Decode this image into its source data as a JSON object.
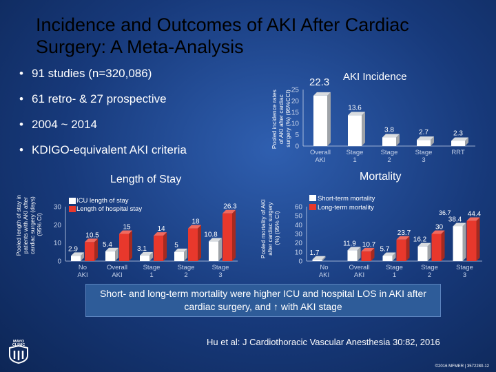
{
  "slide": {
    "title": "Incidence and Outcomes of AKI After Cardiac Surgery: A Meta-Analysis",
    "bullets": [
      "91 studies (n=320,086)",
      "61 retro- & 27 prospective",
      "2004 ~ 2014",
      "KDIGO-equivalent AKI criteria"
    ],
    "callout": "Short- and long-term mortality were higher ICU and hospital LOS in AKI after cardiac surgery, and ↑ with AKI stage",
    "citation": "Hu et al: J Cardiothoracic Vascular Anesthesia 30:82, 2016",
    "copyright": "©2016 MFMER | 3572280-12",
    "logo_text": "MAYO CLINIC",
    "colors": {
      "bar_front": "#ffffff",
      "bar_side": "#9fa3a8",
      "bar_top": "#d9dcdf",
      "series_red": "#e8382c",
      "axis_text": "#c7d3ea"
    }
  },
  "chart_data": [
    {
      "type": "bar",
      "title": "AKI Incidence",
      "highlight_value": "22.3",
      "ylabel": "Pooled incidence rates of AKI after cardiac surgery (%) (95%CCI)",
      "ylim": [
        0,
        25
      ],
      "yticks": [
        0,
        5,
        10,
        15,
        20,
        25
      ],
      "categories": [
        "Overall AKI",
        "Stage 1",
        "Stage 2",
        "Stage 3",
        "RRT"
      ],
      "values": [
        22.3,
        13.6,
        3.8,
        2.7,
        2.3
      ],
      "data_labels": [
        "",
        "13.6",
        "3.8",
        "2.7",
        "2.3"
      ]
    },
    {
      "type": "bar",
      "title": "Length of Stay",
      "ylabel": "Pooled length of stay in patients with AKI after cardiac surgery (days) (95% CI)",
      "ylim": [
        0,
        30
      ],
      "yticks": [
        0,
        10,
        20,
        30
      ],
      "categories": [
        "No AKI",
        "Overall AKI",
        "Stage 1",
        "Stage 2",
        "Stage 3"
      ],
      "series": [
        {
          "name": "ICU length of stay",
          "values": [
            2.9,
            5.4,
            3.1,
            5,
            10.8
          ]
        },
        {
          "name": "Length of hospital stay",
          "values": [
            10.5,
            15,
            14,
            18,
            26.3
          ]
        }
      ],
      "data_labels": [
        [
          "2.9",
          "5.4",
          "3.1",
          "5",
          "10.8"
        ],
        [
          "10.5",
          "15",
          "14",
          "18",
          "26.3"
        ]
      ]
    },
    {
      "type": "bar",
      "title": "Mortality",
      "ylabel": "Pooled mortality of AKI after cardiac surgery (%) (95% CI)",
      "ylim": [
        0,
        60
      ],
      "yticks": [
        0,
        10,
        20,
        30,
        40,
        50,
        60
      ],
      "categories": [
        "No AKI",
        "Overall AKI",
        "Stage 1",
        "Stage 2",
        "Stage 3"
      ],
      "series": [
        {
          "name": "Short-term mortality",
          "values": [
            1.7,
            11.9,
            5.7,
            16.2,
            38.4
          ]
        },
        {
          "name": "Long-term mortality",
          "values": [
            null,
            10.7,
            23.7,
            30,
            44.4
          ]
        }
      ],
      "extra_labels": [
        "36.7"
      ],
      "data_labels": [
        [
          "1.7",
          "11.9",
          "5.7",
          "16.2",
          "38.4"
        ],
        [
          "",
          "10.7",
          "23.7",
          "30",
          "44.4"
        ]
      ]
    }
  ]
}
